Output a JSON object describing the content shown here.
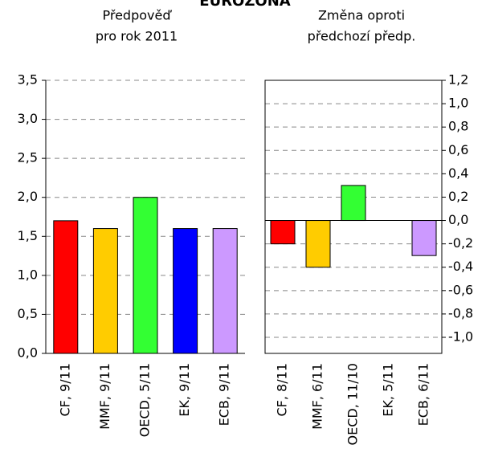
{
  "title": "EUROZÓNA",
  "chart_data": [
    {
      "type": "bar",
      "title": [
        "Předpověď",
        "pro rok 2011"
      ],
      "categories": [
        "CF, 9/11",
        "MMF, 9/11",
        "OECD, 5/11",
        "EK, 9/11",
        "ECB, 9/11"
      ],
      "values": [
        1.7,
        1.6,
        2.0,
        1.6,
        1.6
      ],
      "colors": [
        "#ff0000",
        "#ffcc00",
        "#33ff33",
        "#0000ff",
        "#cc99ff"
      ],
      "ylim": [
        0,
        3.5
      ],
      "yticks": [
        {
          "value": 0,
          "label": "0,0"
        },
        {
          "value": 0.5,
          "label": "0,5"
        },
        {
          "value": 1,
          "label": "1,0"
        },
        {
          "value": 1.5,
          "label": "1,5"
        },
        {
          "value": 2,
          "label": "2,0"
        },
        {
          "value": 2.5,
          "label": "2,5"
        },
        {
          "value": 3,
          "label": "3,0"
        },
        {
          "value": 3.5,
          "label": "3,5"
        }
      ],
      "grid": true,
      "axis_side": "left"
    },
    {
      "type": "bar",
      "title": [
        "Změna oproti",
        "předchozí předp."
      ],
      "categories": [
        "CF, 8/11",
        "MMF, 6/11",
        "OECD, 11/10",
        "EK, 5/11",
        "ECB, 6/11"
      ],
      "values": [
        -0.2,
        -0.4,
        0.3,
        0,
        -0.3
      ],
      "colors": [
        "#ff0000",
        "#ffcc00",
        "#33ff33",
        "#0000ff",
        "#cc99ff"
      ],
      "ylim": [
        -1.0,
        1.2
      ],
      "yticks": [
        {
          "value": -1.0,
          "label": "-1,0"
        },
        {
          "value": -0.8,
          "label": "-0,8"
        },
        {
          "value": -0.6,
          "label": "-0,6"
        },
        {
          "value": -0.4,
          "label": "-0,4"
        },
        {
          "value": -0.2,
          "label": "-0,2"
        },
        {
          "value": 0,
          "label": "0,0"
        },
        {
          "value": 0.2,
          "label": "0,2"
        },
        {
          "value": 0.4,
          "label": "0,4"
        },
        {
          "value": 0.6,
          "label": "0,6"
        },
        {
          "value": 0.8,
          "label": "0,8"
        },
        {
          "value": 1.0,
          "label": "1,0"
        },
        {
          "value": 1.2,
          "label": "1,2"
        }
      ],
      "grid": true,
      "axis_side": "right"
    }
  ]
}
